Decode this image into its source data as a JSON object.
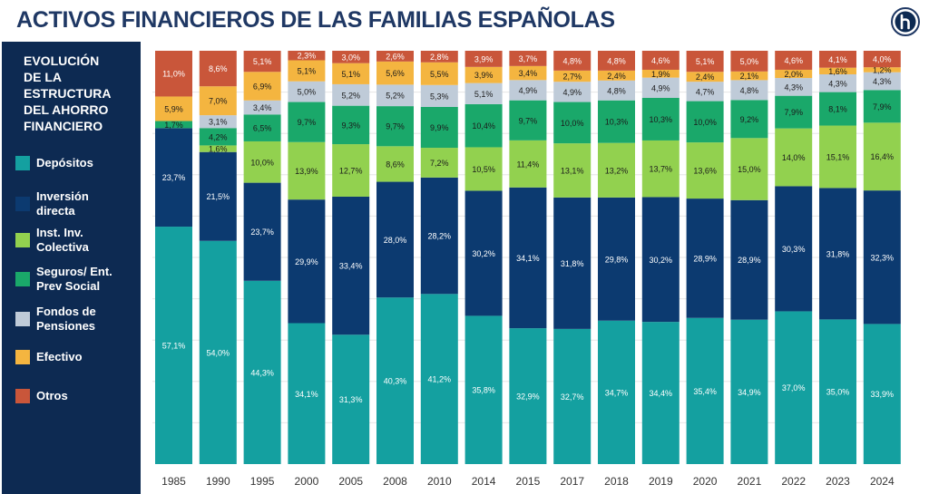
{
  "header": {
    "title": "ACTIVOS FINANCIEROS DE LAS FAMILIAS ESPAÑOLAS",
    "logo_icon": "h-logo-icon"
  },
  "sidebar": {
    "subtitle": [
      "EVOLUCIÓN",
      "DE LA",
      "ESTRUCTURA",
      "DEL AHORRO",
      "FINANCIERO"
    ],
    "legend": [
      {
        "lines": [
          "Depósitos"
        ],
        "color": "#14a0a0"
      },
      {
        "lines": [
          "Inversión",
          "directa"
        ],
        "color": "#0c3a70"
      },
      {
        "lines": [
          "Inst. Inv.",
          "Colectiva"
        ],
        "color": "#92d14f"
      },
      {
        "lines": [
          "Seguros/ Ent.",
          "Prev Social"
        ],
        "color": "#1aa86a"
      },
      {
        "lines": [
          "Fondos de",
          "Pensiones"
        ],
        "color": "#bfcbd8"
      },
      {
        "lines": [
          "Efectivo"
        ],
        "color": "#f4b540"
      },
      {
        "lines": [
          "Otros"
        ],
        "color": "#c9563a"
      }
    ]
  },
  "chart_data": {
    "type": "bar",
    "stacked": true,
    "title": "ACTIVOS FINANCIEROS DE LAS FAMILIAS ESPAÑOLAS",
    "ylim": [
      0,
      100
    ],
    "categories": [
      "1985",
      "1990",
      "1995",
      "2000",
      "2005",
      "2008",
      "2010",
      "2014",
      "2015",
      "2017",
      "2018",
      "2019",
      "2020",
      "2021",
      "2022",
      "2023",
      "2024"
    ],
    "series": [
      {
        "name": "Depósitos",
        "color": "#14a0a0",
        "values": [
          57.1,
          54.0,
          44.3,
          34.1,
          31.3,
          40.3,
          41.2,
          35.8,
          32.9,
          32.7,
          34.7,
          34.4,
          35.4,
          34.9,
          37.0,
          35.0,
          33.9
        ],
        "labels": [
          "57,1%",
          "54,0%",
          "44,3%",
          "34,1%",
          "31,3%",
          "40,3%",
          "41,2%",
          "35,8%",
          "32,9%",
          "32,7%",
          "34,7%",
          "34,4%",
          "35,4%",
          "34,9%",
          "37,0%",
          "35,0%",
          "33,9%"
        ]
      },
      {
        "name": "Inversión directa",
        "color": "#0c3a70",
        "values": [
          23.7,
          21.5,
          23.7,
          29.9,
          33.4,
          28.0,
          28.2,
          30.2,
          34.1,
          31.8,
          29.8,
          30.2,
          28.9,
          28.9,
          30.3,
          31.8,
          32.3
        ],
        "labels": [
          "23,7%",
          "21,5%",
          "23,7%",
          "29,9%",
          "33,4%",
          "28,0%",
          "28,2%",
          "30,2%",
          "34,1%",
          "31,8%",
          "29,8%",
          "30,2%",
          "28,9%",
          "28,9%",
          "30,3%",
          "31,8%",
          "32,3%"
        ]
      },
      {
        "name": "Inst. Inv. Colectiva",
        "color": "#92d14f",
        "values": [
          0,
          1.6,
          10.0,
          13.9,
          12.7,
          8.6,
          7.2,
          10.5,
          11.4,
          13.1,
          13.2,
          13.7,
          13.6,
          15.0,
          14.0,
          15.1,
          16.4
        ],
        "labels": [
          "",
          "1,6%",
          "10,0%",
          "13,9%",
          "12,7%",
          "8,6%",
          "7,2%",
          "10,5%",
          "11,4%",
          "13,1%",
          "13,2%",
          "13,7%",
          "13,6%",
          "15,0%",
          "14,0%",
          "15,1%",
          "16,4%"
        ]
      },
      {
        "name": "Seguros/ Ent. Prev Social",
        "color": "#1aa86a",
        "values": [
          1.7,
          4.2,
          6.5,
          9.7,
          9.3,
          9.7,
          9.9,
          10.4,
          9.7,
          10.0,
          10.3,
          10.3,
          10.0,
          9.2,
          7.9,
          8.1,
          7.9
        ],
        "labels": [
          "1,7%",
          "4,2%",
          "6,5%",
          "9,7%",
          "9,3%",
          "9,7%",
          "9,9%",
          "10,4%",
          "9,7%",
          "10,0%",
          "10,3%",
          "10,3%",
          "10,0%",
          "9,2%",
          "7,9%",
          "8,1%",
          "7,9%"
        ]
      },
      {
        "name": "Fondos de Pensiones",
        "color": "#bfcbd8",
        "values": [
          0,
          3.1,
          3.4,
          5.0,
          5.2,
          5.2,
          5.3,
          5.1,
          4.9,
          4.9,
          4.8,
          4.9,
          4.7,
          4.8,
          4.3,
          4.3,
          4.3
        ],
        "labels": [
          "",
          "3,1%",
          "3,4%",
          "5,0%",
          "5,2%",
          "5,2%",
          "5,3%",
          "5,1%",
          "4,9%",
          "4,9%",
          "4,8%",
          "4,9%",
          "4,7%",
          "4,8%",
          "4,3%",
          "4,3%",
          "4,3%"
        ]
      },
      {
        "name": "Efectivo",
        "color": "#f4b540",
        "values": [
          5.9,
          7.0,
          6.9,
          5.1,
          5.1,
          5.6,
          5.5,
          3.9,
          3.4,
          2.7,
          2.4,
          1.9,
          2.4,
          2.1,
          2.0,
          1.6,
          1.2
        ],
        "labels": [
          "5,9%",
          "7,0%",
          "6,9%",
          "5,1%",
          "5,1%",
          "5,6%",
          "5,5%",
          "3,9%",
          "3,4%",
          "2,7%",
          "2,4%",
          "1,9%",
          "2,4%",
          "2,1%",
          "2,0%",
          "1,6%",
          "1,2%"
        ]
      },
      {
        "name": "Otros",
        "color": "#c9563a",
        "values": [
          11.0,
          8.6,
          5.1,
          2.3,
          3.0,
          2.6,
          2.8,
          3.9,
          3.7,
          4.8,
          4.8,
          4.6,
          5.1,
          5.0,
          4.6,
          4.1,
          4.0
        ],
        "labels": [
          "11,0%",
          "8,6%",
          "5,1%",
          "2,3%",
          "3,0%",
          "2,6%",
          "2,8%",
          "3,9%",
          "3,7%",
          "4,8%",
          "4,8%",
          "4,6%",
          "5,1%",
          "5,0%",
          "4,6%",
          "4,1%",
          "4,0%"
        ]
      }
    ]
  }
}
